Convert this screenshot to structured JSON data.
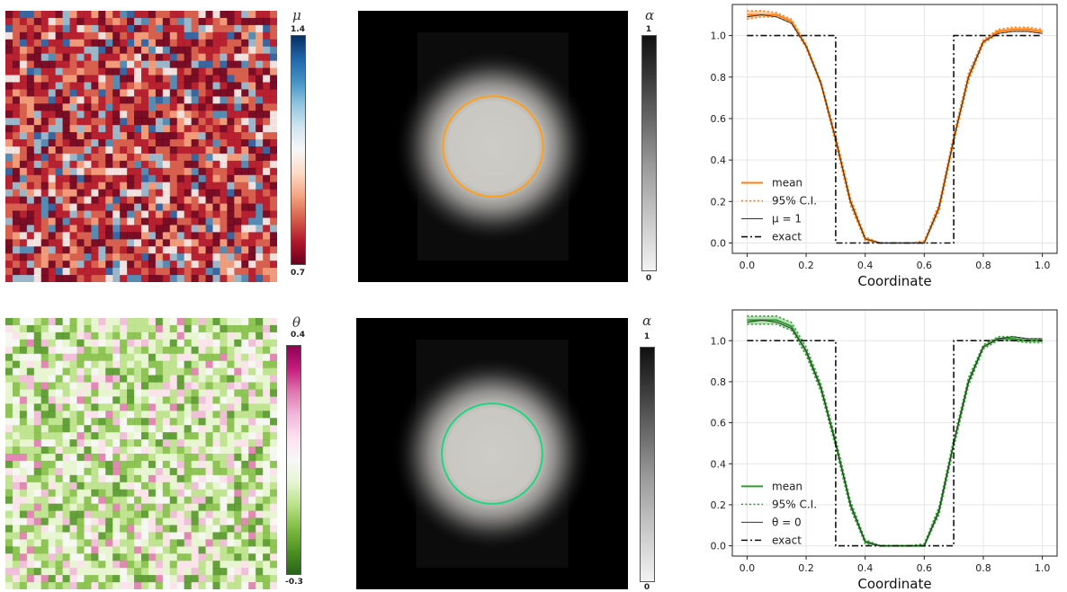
{
  "rows": [
    {
      "field": {
        "symbol": "μ",
        "tick_max": "1.4",
        "tick_min": "0.7",
        "colormap": [
          "#68001f",
          "#b2182b",
          "#d6604d",
          "#f4a582",
          "#fddbc7",
          "#f7f7f7",
          "#d1e5f0",
          "#92c5de",
          "#4393c3",
          "#2166ac",
          "#053061"
        ]
      },
      "alpha": {
        "symbol": "α",
        "tick_max": "1",
        "tick_min": "0",
        "contour_color": "#ff9f1c"
      },
      "chart_data": {
        "type": "line",
        "xlabel": "Coordinate",
        "ylabel": "",
        "xlim": [
          -0.05,
          1.05
        ],
        "ylim": [
          -0.05,
          1.15
        ],
        "xticks": [
          "0.0",
          "0.2",
          "0.4",
          "0.6",
          "0.8",
          "1.0"
        ],
        "yticks": [
          "0.0",
          "0.2",
          "0.4",
          "0.6",
          "0.8",
          "1.0"
        ],
        "grid": true,
        "legend_position": "lower-left",
        "legend": [
          "mean",
          "95% C.I.",
          "μ = 1",
          "exact"
        ],
        "series": [
          {
            "name": "mean",
            "color": "#ff7f0e",
            "x": [
              0.0,
              0.05,
              0.1,
              0.15,
              0.2,
              0.25,
              0.3,
              0.35,
              0.4,
              0.45,
              0.5,
              0.55,
              0.6,
              0.65,
              0.7,
              0.75,
              0.8,
              0.85,
              0.9,
              0.95,
              1.0
            ],
            "y": [
              1.1,
              1.1,
              1.1,
              1.07,
              0.95,
              0.77,
              0.5,
              0.2,
              0.02,
              0.0,
              0.0,
              0.0,
              0.0,
              0.17,
              0.5,
              0.8,
              0.97,
              1.02,
              1.03,
              1.03,
              1.02
            ]
          },
          {
            "name": "95% C.I. upper",
            "color": "#ff7f0e",
            "x": [
              0.0,
              0.05,
              0.1,
              0.15,
              0.2,
              0.25,
              0.3,
              0.35,
              0.4,
              0.45,
              0.5,
              0.55,
              0.6,
              0.65,
              0.7,
              0.75,
              0.8,
              0.85,
              0.9,
              0.95,
              1.0
            ],
            "y": [
              1.12,
              1.12,
              1.11,
              1.08,
              0.96,
              0.78,
              0.52,
              0.22,
              0.03,
              0.0,
              0.0,
              0.0,
              0.01,
              0.19,
              0.52,
              0.82,
              0.98,
              1.03,
              1.04,
              1.04,
              1.03
            ]
          },
          {
            "name": "95% C.I. lower",
            "color": "#ff7f0e",
            "x": [
              0.0,
              0.05,
              0.1,
              0.15,
              0.2,
              0.25,
              0.3,
              0.35,
              0.4,
              0.45,
              0.5,
              0.55,
              0.6,
              0.65,
              0.7,
              0.75,
              0.8,
              0.85,
              0.9,
              0.95,
              1.0
            ],
            "y": [
              1.08,
              1.09,
              1.09,
              1.06,
              0.94,
              0.76,
              0.48,
              0.18,
              0.01,
              0.0,
              0.0,
              0.0,
              0.0,
              0.15,
              0.48,
              0.78,
              0.96,
              1.01,
              1.02,
              1.02,
              1.01
            ]
          },
          {
            "name": "μ = 1",
            "color": "#333333",
            "x": [
              0.0,
              0.05,
              0.1,
              0.15,
              0.2,
              0.25,
              0.3,
              0.35,
              0.4,
              0.45,
              0.5,
              0.55,
              0.6,
              0.65,
              0.7,
              0.75,
              0.8,
              0.85,
              0.9,
              0.95,
              1.0
            ],
            "y": [
              1.09,
              1.1,
              1.09,
              1.06,
              0.95,
              0.77,
              0.5,
              0.2,
              0.02,
              0.0,
              0.0,
              0.0,
              0.0,
              0.17,
              0.5,
              0.8,
              0.97,
              1.01,
              1.02,
              1.02,
              1.01
            ]
          },
          {
            "name": "exact",
            "color": "#111111",
            "x": [
              0.0,
              0.3,
              0.3,
              0.7,
              0.7,
              1.0
            ],
            "y": [
              1.0,
              1.0,
              0.0,
              0.0,
              1.0,
              1.0
            ]
          }
        ]
      }
    },
    {
      "field": {
        "symbol": "θ",
        "tick_max": "0.4",
        "tick_min": "-0.3",
        "colormap": [
          "#276419",
          "#4d9221",
          "#7fbc41",
          "#b8e186",
          "#e6f5d0",
          "#f7f7f7",
          "#fde0ef",
          "#f1b6da",
          "#de77ae",
          "#c51b7d",
          "#8e0152"
        ]
      },
      "alpha": {
        "symbol": "α",
        "tick_max": "1",
        "tick_min": "0",
        "contour_color": "#1fd67f"
      },
      "chart_data": {
        "type": "line",
        "xlabel": "Coordinate",
        "ylabel": "",
        "xlim": [
          -0.05,
          1.05
        ],
        "ylim": [
          -0.05,
          1.15
        ],
        "xticks": [
          "0.0",
          "0.2",
          "0.4",
          "0.6",
          "0.8",
          "1.0"
        ],
        "yticks": [
          "0.0",
          "0.2",
          "0.4",
          "0.6",
          "0.8",
          "1.0"
        ],
        "grid": true,
        "legend_position": "lower-left",
        "legend": [
          "mean",
          "95% C.I.",
          "θ = 0",
          "exact"
        ],
        "series": [
          {
            "name": "mean",
            "color": "#2ca02c",
            "x": [
              0.0,
              0.05,
              0.1,
              0.15,
              0.2,
              0.25,
              0.3,
              0.35,
              0.4,
              0.45,
              0.5,
              0.55,
              0.6,
              0.65,
              0.7,
              0.75,
              0.8,
              0.85,
              0.9,
              0.95,
              1.0
            ],
            "y": [
              1.1,
              1.1,
              1.1,
              1.07,
              0.95,
              0.77,
              0.5,
              0.2,
              0.02,
              0.0,
              0.0,
              0.0,
              0.0,
              0.17,
              0.5,
              0.8,
              0.97,
              1.01,
              1.01,
              1.0,
              1.0
            ]
          },
          {
            "name": "95% C.I. upper",
            "color": "#2ca02c",
            "x": [
              0.0,
              0.05,
              0.1,
              0.15,
              0.2,
              0.25,
              0.3,
              0.35,
              0.4,
              0.45,
              0.5,
              0.55,
              0.6,
              0.65,
              0.7,
              0.75,
              0.8,
              0.85,
              0.9,
              0.95,
              1.0
            ],
            "y": [
              1.12,
              1.12,
              1.12,
              1.09,
              0.97,
              0.79,
              0.52,
              0.22,
              0.03,
              0.0,
              0.0,
              0.0,
              0.01,
              0.19,
              0.52,
              0.82,
              0.98,
              1.02,
              1.02,
              1.01,
              1.01
            ]
          },
          {
            "name": "95% C.I. lower",
            "color": "#2ca02c",
            "x": [
              0.0,
              0.05,
              0.1,
              0.15,
              0.2,
              0.25,
              0.3,
              0.35,
              0.4,
              0.45,
              0.5,
              0.55,
              0.6,
              0.65,
              0.7,
              0.75,
              0.8,
              0.85,
              0.9,
              0.95,
              1.0
            ],
            "y": [
              1.08,
              1.08,
              1.08,
              1.05,
              0.93,
              0.75,
              0.48,
              0.18,
              0.01,
              0.0,
              0.0,
              0.0,
              0.0,
              0.15,
              0.48,
              0.78,
              0.96,
              1.0,
              1.0,
              0.99,
              0.99
            ]
          },
          {
            "name": "θ = 0",
            "color": "#333333",
            "x": [
              0.0,
              0.05,
              0.1,
              0.15,
              0.2,
              0.25,
              0.3,
              0.35,
              0.4,
              0.45,
              0.5,
              0.55,
              0.6,
              0.65,
              0.7,
              0.75,
              0.8,
              0.85,
              0.9,
              0.95,
              1.0
            ],
            "y": [
              1.09,
              1.1,
              1.09,
              1.06,
              0.95,
              0.77,
              0.5,
              0.2,
              0.02,
              0.0,
              0.0,
              0.0,
              0.0,
              0.17,
              0.5,
              0.8,
              0.97,
              1.01,
              1.02,
              1.01,
              1.01
            ]
          },
          {
            "name": "exact",
            "color": "#111111",
            "x": [
              0.0,
              0.3,
              0.3,
              0.7,
              0.7,
              1.0
            ],
            "y": [
              1.0,
              1.0,
              0.0,
              0.0,
              1.0,
              1.0
            ]
          }
        ]
      }
    }
  ]
}
